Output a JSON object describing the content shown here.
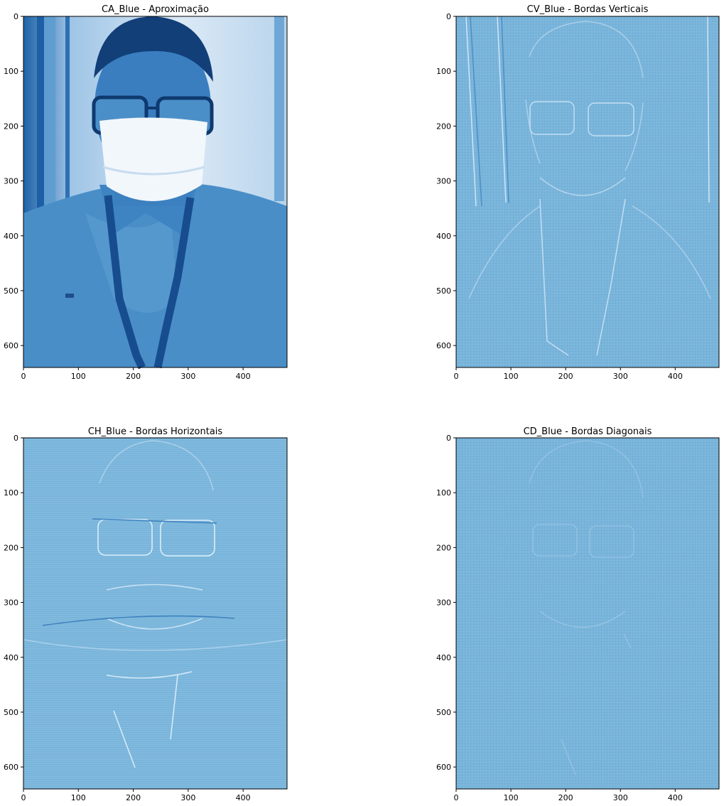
{
  "colors": {
    "background": "#ffffff",
    "approx_dark": "#0b4f99",
    "approx_mid": "#4c90c8",
    "approx_light": "#d8e8f6",
    "detail_base": "#79b4da",
    "detail_light": "#c7e0f2",
    "detail_dark": "#3c7fbc"
  },
  "axes": {
    "x_ticks": [
      "0",
      "100",
      "200",
      "300",
      "400"
    ],
    "y_ticks": [
      "0",
      "100",
      "200",
      "300",
      "400",
      "500",
      "600"
    ],
    "x_range": [
      0,
      480
    ],
    "y_range": [
      0,
      640
    ]
  },
  "panels": [
    {
      "id": "ca",
      "title": "CA_Blue - Aproximação",
      "kind": "approximation"
    },
    {
      "id": "cv",
      "title": "CV_Blue - Bordas Verticais",
      "kind": "vertical-edges"
    },
    {
      "id": "ch",
      "title": "CH_Blue - Bordas Horizontais",
      "kind": "horizontal-edges"
    },
    {
      "id": "cd",
      "title": "CD_Blue - Bordas Diagonais",
      "kind": "diagonal-edges"
    }
  ]
}
